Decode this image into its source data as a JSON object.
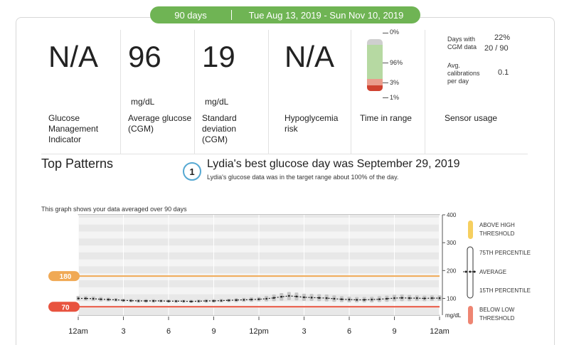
{
  "header": {
    "days": "90 days",
    "range": "Tue Aug 13, 2019 - Sun Nov 10, 2019",
    "accent": "#6fb454"
  },
  "metrics": {
    "gmi": {
      "value": "N/A",
      "label": "Glucose Management Indicator"
    },
    "avg": {
      "value": "96",
      "unit": "mg/dL",
      "label": "Average glucose (CGM)"
    },
    "sd": {
      "value": "19",
      "unit": "mg/dL",
      "label": "Standard deviation (CGM)"
    },
    "hypo": {
      "value": "N/A",
      "label": "Hypoglycemia risk"
    },
    "tir": {
      "label": "Time in range",
      "values": {
        "above": 0,
        "in_range": 96,
        "low": 3,
        "very_low": 1
      },
      "above_label": "0%",
      "in_range_label": "96%",
      "low_label": "3%",
      "very_low_label": "1%"
    },
    "sensor": {
      "label": "Sensor usage",
      "days_label": "Days with CGM data",
      "days_pct": "22%",
      "days_count": "20 / 90",
      "cal_label": "Avg. calibrations per day",
      "cal_value": "0.1"
    }
  },
  "patterns": {
    "title": "Top Patterns",
    "badge": "1",
    "best_title": "Lydia's best glucose day was September 29, 2019",
    "best_sub": "Lydia's glucose data was in the target range about 100% of the day."
  },
  "graph": {
    "note": "This graph shows your data averaged over 90 days",
    "high_label": "180",
    "low_label": "70",
    "unit": "mg/dL",
    "colors": {
      "high": "#f0a955",
      "low": "#e8533f",
      "above": "#f6cf5f",
      "below": "#ee8572"
    },
    "legend": {
      "above": "ABOVE HIGH THRESHOLD",
      "p75": "75TH PERCENTILE",
      "average": "AVERAGE",
      "p15": "15TH PERCENTILE",
      "below": "BELOW LOW THRESHOLD"
    }
  },
  "chart_data": {
    "type": "line",
    "x_ticks": [
      "12am",
      "3",
      "6",
      "9",
      "12pm",
      "3",
      "6",
      "9",
      "12am"
    ],
    "y_ticks": [
      "400",
      "300",
      "200",
      "100"
    ],
    "ylim": [
      40,
      400
    ],
    "thresholds": {
      "high": 180,
      "low": 70
    },
    "hours": [
      0,
      0.5,
      1,
      1.5,
      2,
      2.5,
      3,
      3.5,
      4,
      4.5,
      5,
      5.5,
      6,
      6.5,
      7,
      7.5,
      8,
      8.5,
      9,
      9.5,
      10,
      10.5,
      11,
      11.5,
      12,
      12.5,
      13,
      13.5,
      14,
      14.5,
      15,
      15.5,
      16,
      16.5,
      17,
      17.5,
      18,
      18.5,
      19,
      19.5,
      20,
      20.5,
      21,
      21.5,
      22,
      22.5,
      23,
      23.5,
      24
    ],
    "series": [
      {
        "name": "AVERAGE",
        "values": [
          100,
          100,
          99,
          97,
          96,
          95,
          93,
          92,
          91,
          91,
          91,
          91,
          90,
          90,
          90,
          89,
          90,
          91,
          91,
          92,
          93,
          94,
          95,
          96,
          97,
          99,
          102,
          106,
          109,
          107,
          104,
          103,
          102,
          101,
          99,
          97,
          96,
          95,
          95,
          96,
          97,
          99,
          101,
          102,
          101,
          101,
          100,
          101,
          101
        ]
      },
      {
        "name": "75TH PERCENTILE",
        "values": [
          109,
          108,
          107,
          105,
          103,
          101,
          99,
          98,
          97,
          97,
          97,
          96,
          96,
          95,
          95,
          95,
          96,
          97,
          97,
          98,
          99,
          101,
          102,
          104,
          105,
          109,
          114,
          119,
          123,
          121,
          117,
          116,
          115,
          114,
          111,
          108,
          106,
          105,
          105,
          106,
          108,
          110,
          113,
          114,
          112,
          111,
          110,
          111,
          111
        ]
      },
      {
        "name": "15TH PERCENTILE",
        "values": [
          92,
          92,
          91,
          89,
          89,
          89,
          87,
          86,
          85,
          85,
          85,
          86,
          85,
          85,
          85,
          84,
          85,
          85,
          85,
          86,
          87,
          87,
          88,
          88,
          89,
          89,
          90,
          92,
          94,
          93,
          91,
          91,
          90,
          89,
          88,
          87,
          86,
          86,
          86,
          86,
          87,
          88,
          89,
          90,
          90,
          91,
          90,
          91,
          91
        ]
      }
    ]
  }
}
